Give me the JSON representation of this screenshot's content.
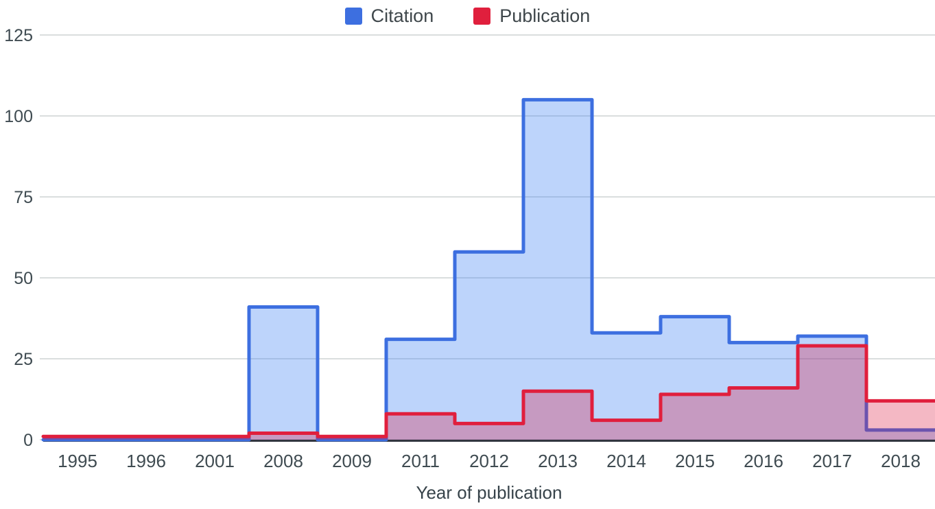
{
  "chart_data": {
    "type": "area",
    "stepped": true,
    "title": "",
    "xlabel": "Year of publication",
    "ylabel": "",
    "categories": [
      "1995",
      "1996",
      "2001",
      "2008",
      "2009",
      "2011",
      "2012",
      "2013",
      "2014",
      "2015",
      "2016",
      "2017",
      "2018"
    ],
    "series": [
      {
        "name": "Citation",
        "color": "#3d6fe0",
        "fill": "rgba(66,133,244,0.35)",
        "values": [
          0,
          0,
          0,
          41,
          0,
          31,
          58,
          105,
          33,
          38,
          30,
          32,
          3
        ]
      },
      {
        "name": "Publication",
        "color": "#e01f3d",
        "fill": "rgba(219,20,60,0.30)",
        "values": [
          1,
          1,
          1,
          2,
          1,
          8,
          5,
          15,
          6,
          14,
          16,
          29,
          12
        ]
      }
    ],
    "yticks": [
      0,
      25,
      50,
      75,
      100,
      125
    ],
    "ylim": [
      0,
      125
    ],
    "grid": true,
    "legend_position": "top"
  }
}
